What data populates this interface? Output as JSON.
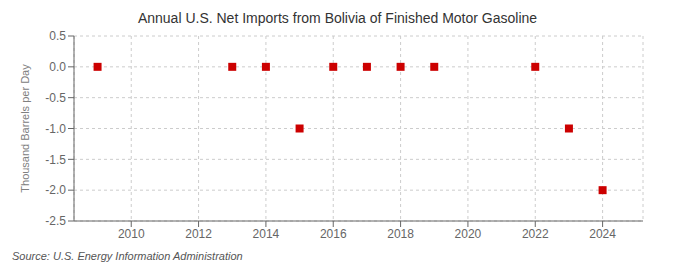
{
  "chart_data": {
    "type": "scatter",
    "title": "Annual U.S. Net Imports from Bolivia of Finished Motor Gasoline",
    "ylabel": "Thousand Barrels per Day",
    "annotations": [
      "Source: U.S. Energy Information Administration"
    ],
    "x": [
      2009,
      2013,
      2014,
      2015,
      2016,
      2017,
      2018,
      2019,
      2022,
      2023,
      2024
    ],
    "values": [
      0,
      0,
      0,
      -1,
      0,
      0,
      0,
      0,
      0,
      -1,
      -2
    ],
    "color": "#cc0000",
    "marker": "square",
    "xlim": [
      2008.3,
      2025.2
    ],
    "ylim": [
      -2.5,
      0.5
    ],
    "xticks": [
      2010,
      2012,
      2014,
      2016,
      2018,
      2020,
      2022,
      2024
    ],
    "yticks": [
      0.5,
      {
        "value": 0,
        "label": "0.0"
      },
      -0.5,
      {
        "value": -1,
        "label": "-1.0"
      },
      -1.5,
      {
        "value": -2,
        "label": "-2.0"
      },
      -2.5
    ],
    "grid": true
  }
}
